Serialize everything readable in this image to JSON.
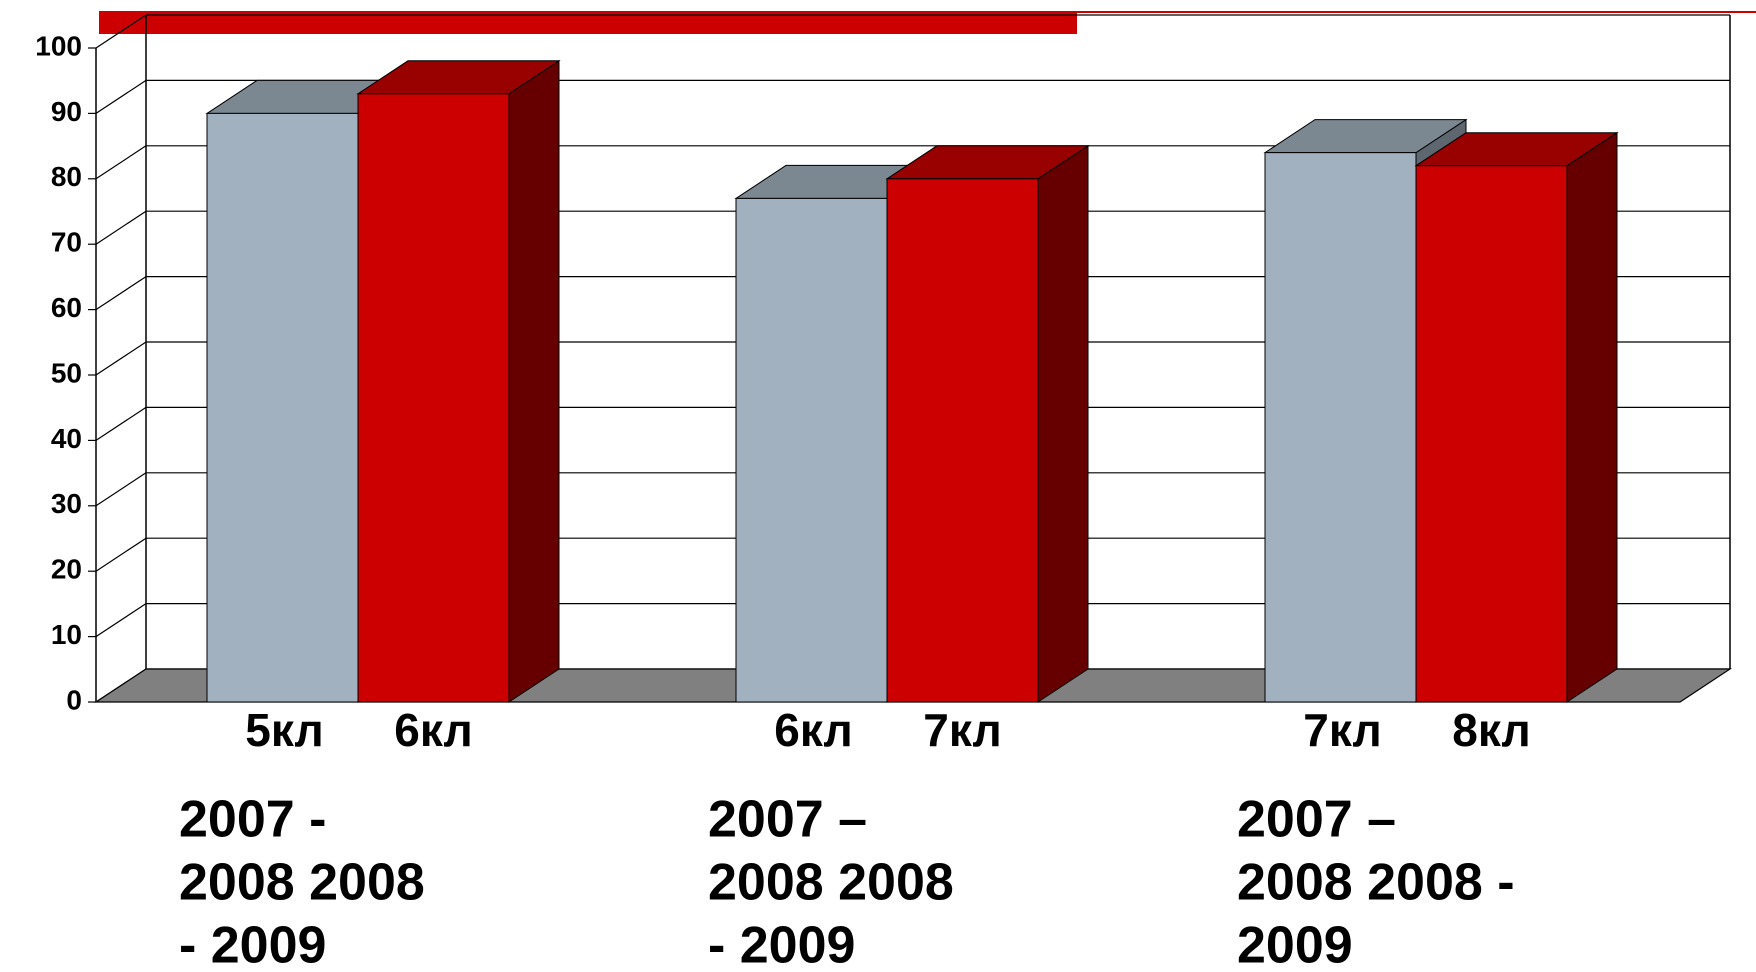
{
  "chart_data": {
    "type": "bar3d",
    "categories": [
      [
        "2007 -",
        "2008 2008",
        "-  2009"
      ],
      [
        "2007 –",
        "2008 2008",
        "- 2009"
      ],
      [
        "2007 –",
        "2008 2008 -",
        "2009"
      ]
    ],
    "series": [
      {
        "color": "#a2b1bf",
        "labels": [
          "5кл",
          "6кл",
          "7кл"
        ],
        "values": [
          90,
          77,
          84
        ]
      },
      {
        "color": "#cc0000",
        "labels": [
          "6кл",
          "7кл",
          "8кл"
        ],
        "values": [
          93,
          80,
          82
        ]
      }
    ],
    "ylim": [
      0,
      100
    ],
    "yticks": [
      0,
      10,
      20,
      30,
      40,
      50,
      60,
      70,
      80,
      90,
      100
    ],
    "grid": true
  }
}
